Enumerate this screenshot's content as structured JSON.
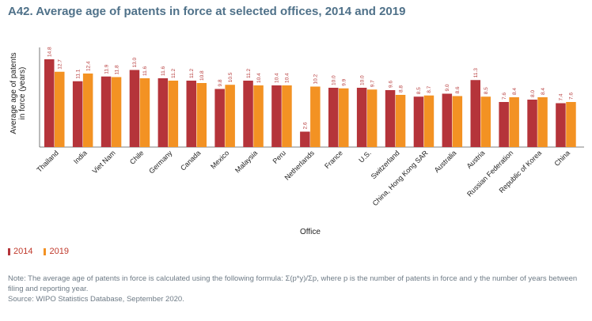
{
  "title": "A42. Average age of patents in force at selected offices, 2014 and 2019",
  "chart_data": {
    "type": "bar",
    "title": "A42. Average age of patents in force at selected offices, 2014 and 2019",
    "xlabel": "Office",
    "ylabel": "Average age of patents in force (years)",
    "ylim": [
      0,
      15.5
    ],
    "grid": false,
    "legend_position": "bottom-left",
    "categories": [
      "Thailand",
      "India",
      "Viet Nam",
      "Chile",
      "Germany",
      "Canada",
      "Mexico",
      "Malaysia",
      "Peru",
      "Netherlands",
      "France",
      "U.S.",
      "Switzerland",
      "China, Hong Kong SAR",
      "Australia",
      "Austria",
      "Russian Federation",
      "Republic of Korea",
      "China"
    ],
    "series": [
      {
        "name": "2014",
        "color": "#b5343a",
        "values": [
          14.8,
          11.1,
          11.9,
          13.0,
          11.6,
          11.2,
          9.8,
          11.2,
          10.4,
          2.6,
          10.0,
          10.0,
          9.6,
          8.5,
          9.0,
          11.3,
          7.6,
          8.0,
          7.4
        ],
        "labels": [
          "14.8",
          "11.1",
          "11.9",
          "13.0",
          "11.6",
          "11.2",
          "9.8",
          "11.2",
          "10.4",
          "2.6",
          "10.0",
          "10.0",
          "9.6",
          "8.5",
          "9.0",
          "11.3",
          "7.6",
          "8.0",
          "7.4"
        ]
      },
      {
        "name": "2019",
        "color": "#f39223",
        "values": [
          12.7,
          12.4,
          11.8,
          11.6,
          11.2,
          10.8,
          10.5,
          10.4,
          10.4,
          10.2,
          9.9,
          9.7,
          8.8,
          8.7,
          8.6,
          8.5,
          8.4,
          8.4,
          7.6
        ],
        "labels": [
          "12.7",
          "12.4",
          "11.8",
          "11.6",
          "11.2",
          "10.8",
          "10.5",
          "10.4",
          "10.4",
          "10.2",
          "9.9",
          "9.7",
          "8.8",
          "8.7",
          "8.6",
          "8.5",
          "8.4",
          "8.4",
          "7.6"
        ]
      }
    ]
  },
  "legend": {
    "label_2014": "2014",
    "label_2019": "2019",
    "color_2014": "#b5343a",
    "color_2019": "#f39223"
  },
  "note": {
    "line1": "Note: The average age of patents in force is calculated using the following formula: Σ(p*y)/Σp, where p is the number of patents in force and y the number of years between filing and reporting year.",
    "source": "Source: WIPO Statistics Database, September 2020."
  }
}
